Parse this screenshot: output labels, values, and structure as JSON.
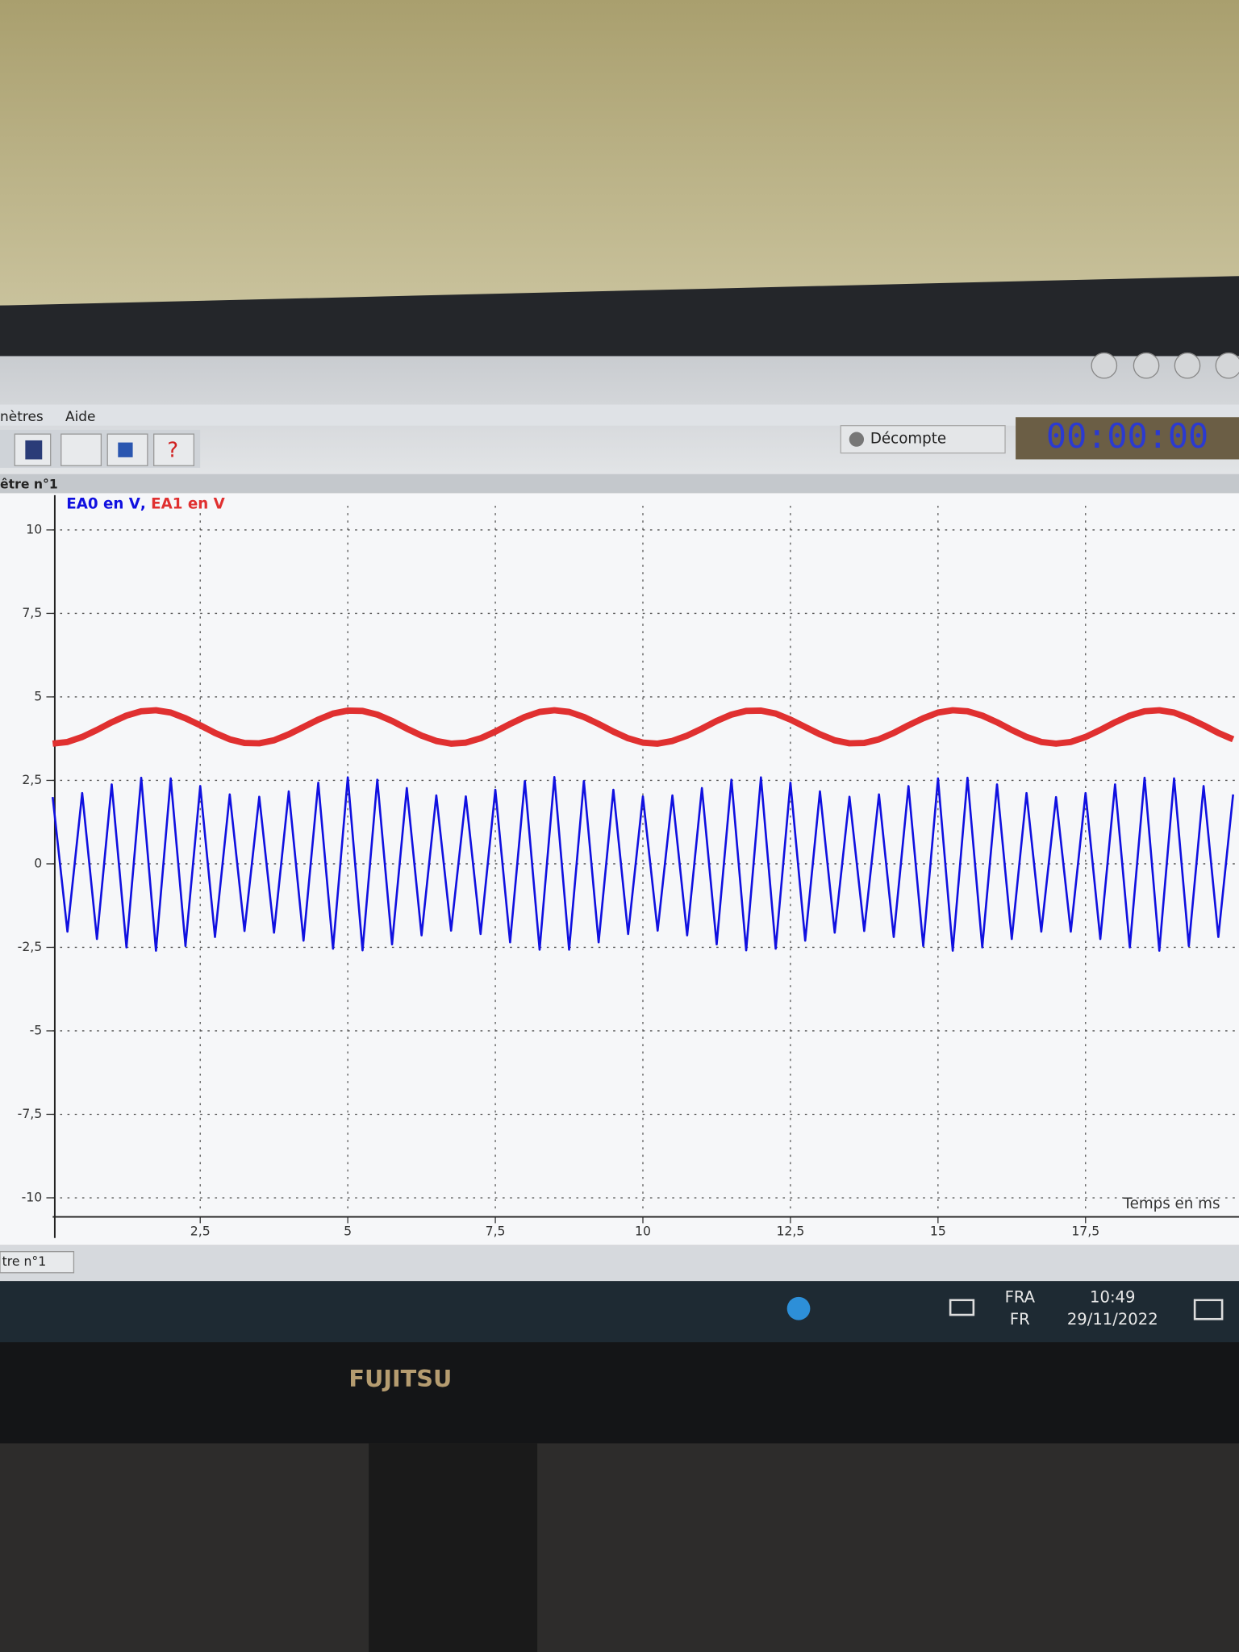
{
  "chart_data": {
    "type": "line",
    "legend": true,
    "legend_corner": "top-left",
    "legend_separator": ",",
    "xlabel": "Temps en ms",
    "grid": true,
    "x": [
      0,
      0.25,
      0.5,
      0.75,
      1,
      1.25,
      1.5,
      1.75,
      2,
      2.25,
      2.5,
      2.75,
      3,
      3.25,
      3.5,
      3.75,
      4,
      4.25,
      4.5,
      4.75,
      5,
      5.25,
      5.5,
      5.75,
      6,
      6.25,
      6.5,
      6.75,
      7,
      7.25,
      7.5,
      7.75,
      8,
      8.25,
      8.5,
      8.75,
      9,
      9.25,
      9.5,
      9.75,
      10,
      10.25,
      10.5,
      10.75,
      11,
      11.25,
      11.5,
      11.75,
      12,
      12.25,
      12.5,
      12.75,
      13,
      13.25,
      13.5,
      13.75,
      14,
      14.25,
      14.5,
      14.75,
      15,
      15.25,
      15.5,
      15.75,
      16,
      16.25,
      16.5,
      16.75,
      17,
      17.25,
      17.5,
      17.75,
      18,
      18.25,
      18.5,
      18.75,
      19,
      19.25,
      19.5,
      19.75,
      20
    ],
    "series": [
      {
        "name": "EA0 en V",
        "color": "#1010e0",
        "values": [
          2.0,
          -2.03,
          2.12,
          -2.25,
          2.38,
          -2.5,
          2.58,
          -2.6,
          2.56,
          -2.46,
          2.33,
          -2.19,
          2.08,
          -2.01,
          2.01,
          -2.06,
          2.17,
          -2.3,
          2.43,
          -2.54,
          2.59,
          -2.59,
          2.52,
          -2.41,
          2.27,
          -2.14,
          2.05,
          -2.0,
          2.02,
          -2.1,
          2.22,
          -2.35,
          2.48,
          -2.57,
          2.6,
          -2.57,
          2.48,
          -2.35,
          2.22,
          -2.1,
          2.02,
          -2.0,
          2.05,
          -2.14,
          2.27,
          -2.41,
          2.52,
          -2.59,
          2.59,
          -2.54,
          2.43,
          -2.3,
          2.17,
          -2.06,
          2.01,
          -2.01,
          2.08,
          -2.19,
          2.33,
          -2.46,
          2.56,
          -2.6,
          2.58,
          -2.5,
          2.38,
          -2.25,
          2.12,
          -2.03,
          2.0,
          -2.03,
          2.12,
          -2.25,
          2.38,
          -2.5,
          2.58,
          -2.6,
          2.56,
          -2.46,
          2.33,
          -2.19,
          2.08
        ]
      },
      {
        "name": "EA1 en V",
        "color": "#e03030",
        "values": [
          3.6,
          3.65,
          3.8,
          4.01,
          4.24,
          4.44,
          4.57,
          4.6,
          4.53,
          4.36,
          4.15,
          3.92,
          3.73,
          3.62,
          3.61,
          3.7,
          3.88,
          4.1,
          4.32,
          4.5,
          4.59,
          4.58,
          4.47,
          4.28,
          4.05,
          3.84,
          3.68,
          3.6,
          3.63,
          3.76,
          3.96,
          4.19,
          4.4,
          4.55,
          4.6,
          4.55,
          4.4,
          4.19,
          3.96,
          3.76,
          3.63,
          3.6,
          3.68,
          3.84,
          4.05,
          4.28,
          4.47,
          4.58,
          4.59,
          4.5,
          4.32,
          4.1,
          3.88,
          3.7,
          3.61,
          3.62,
          3.73,
          3.92,
          4.15,
          4.36,
          4.53,
          4.6,
          4.57,
          4.44,
          4.24,
          4.01,
          3.8,
          3.65,
          3.6,
          3.65,
          3.8,
          4.01,
          4.24,
          4.44,
          4.57,
          4.6,
          4.53,
          4.36,
          4.15,
          3.92,
          3.73
        ]
      }
    ],
    "xlim": [
      0,
      20.1
    ],
    "xticks": [
      {
        "value": 2.5,
        "label": "2,5"
      },
      5,
      {
        "value": 7.5,
        "label": "7,5"
      },
      10,
      {
        "value": 12.5,
        "label": "12,5"
      },
      15,
      {
        "value": 17.5,
        "label": "17,5"
      }
    ],
    "ylim": [
      -10.57,
      11.04
    ],
    "yticks": [
      10,
      {
        "value": 7.5,
        "label": "7,5"
      },
      5,
      {
        "value": 2.5,
        "label": "2,5"
      },
      0,
      {
        "value": -2.5,
        "label": "-2,5"
      },
      -5,
      {
        "value": -7.5,
        "label": "-7,5"
      },
      -10
    ]
  },
  "ui": {
    "menu": [
      "nètres",
      "Aide"
    ],
    "countdown": "Décompte",
    "timer": "00:00:00",
    "window_tab": "être n°1",
    "status_tab": "tre n°1",
    "taskbar": {
      "lang": "FRA",
      "layout": "FR",
      "time": "10:49",
      "date": "29/11/2022"
    },
    "brand": "FUJITSU"
  }
}
